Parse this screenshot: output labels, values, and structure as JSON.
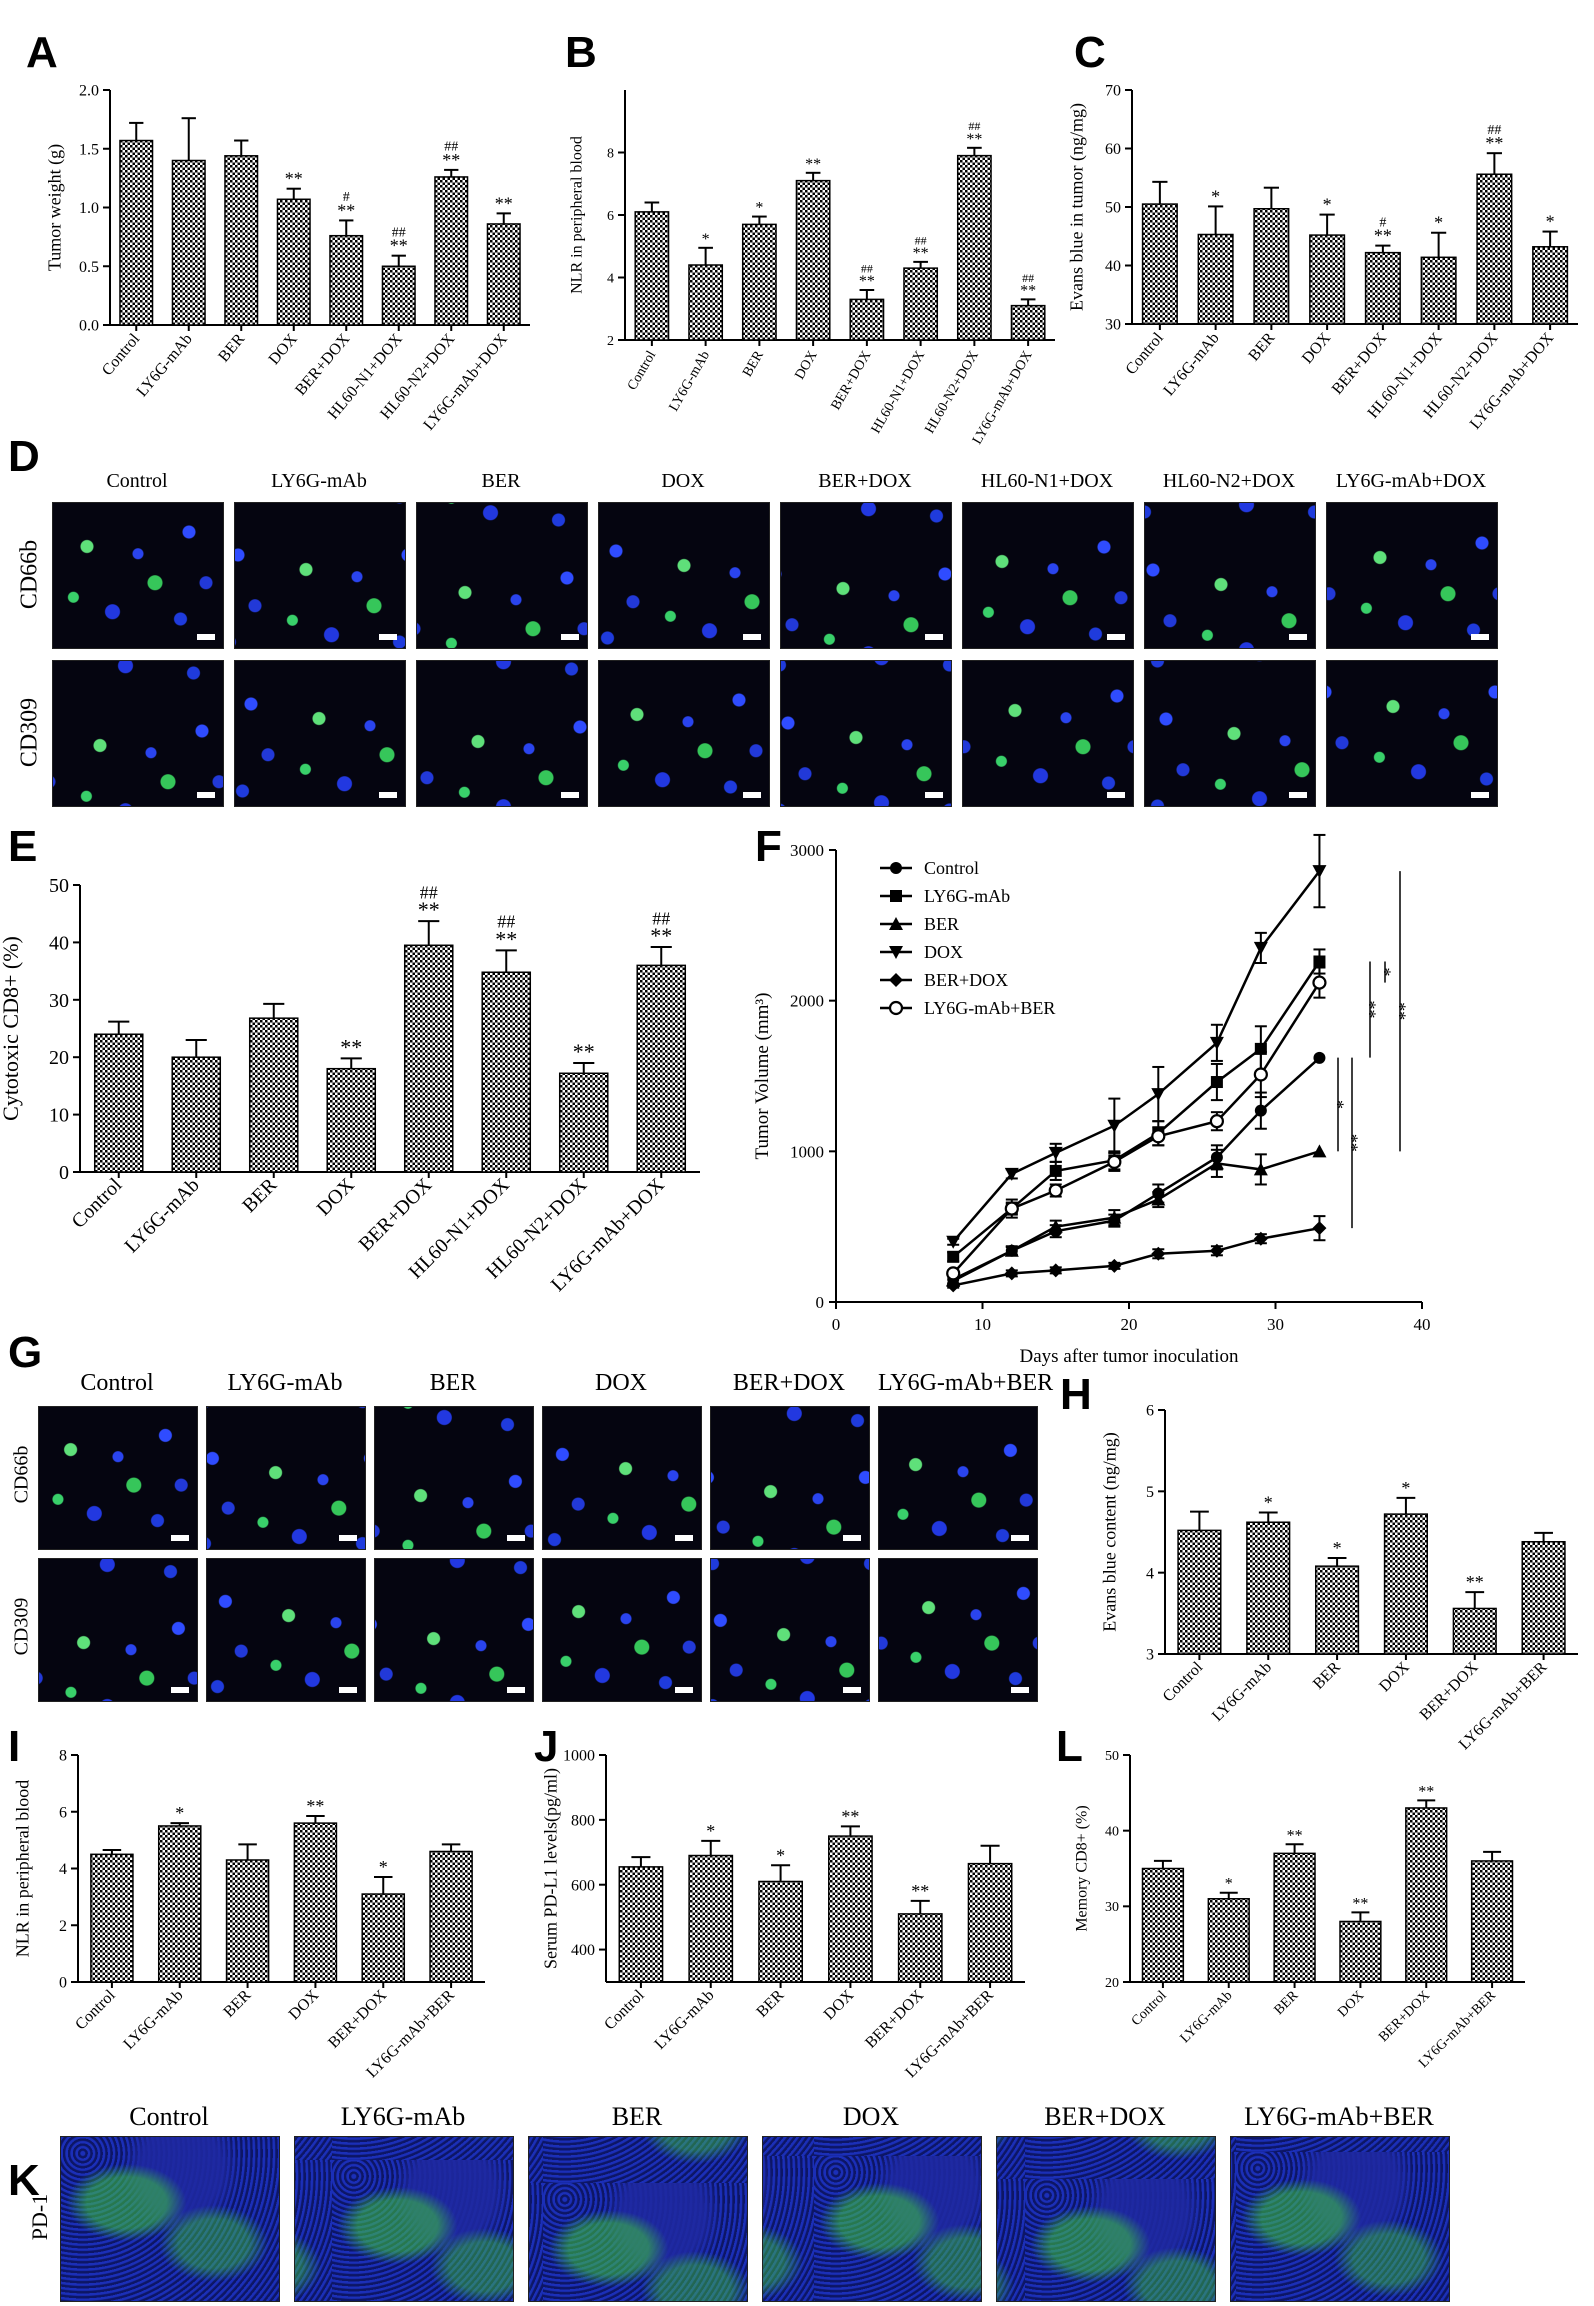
{
  "panels": {
    "A": "A",
    "B": "B",
    "C": "C",
    "D": "D",
    "E": "E",
    "F": "F",
    "G": "G",
    "H": "H",
    "I": "I",
    "J": "J",
    "K": "K",
    "L": "L"
  },
  "micro_d": {
    "cols": [
      "Control",
      "LY6G-mAb",
      "BER",
      "DOX",
      "BER+DOX",
      "HL60-N1+DOX",
      "HL60-N2+DOX",
      "LY6G-mAb+DOX"
    ],
    "rows": [
      "CD66b",
      "CD309"
    ]
  },
  "micro_g": {
    "cols": [
      "Control",
      "LY6G-mAb",
      "BER",
      "DOX",
      "BER+DOX",
      "LY6G-mAb+BER"
    ],
    "rows": [
      "CD66b",
      "CD309"
    ]
  },
  "micro_k": {
    "cols": [
      "Control",
      "LY6G-mAb",
      "BER",
      "DOX",
      "BER+DOX",
      "LY6G-mAb+BER"
    ],
    "rows": [
      "PD-1"
    ]
  },
  "chart_data": [
    {
      "id": "A",
      "type": "bar",
      "ylabel": "Tumor weight (g)",
      "ylim": [
        0,
        2.0
      ],
      "yticks": [
        "0.0",
        "0.5",
        "1.0",
        "1.5",
        "2.0"
      ],
      "categories": [
        "Control",
        "LY6G-mAb",
        "BER",
        "DOX",
        "BER+DOX",
        "HL60-N1+DOX",
        "HL60-N2+DOX",
        "LY6G-mAb+DOX"
      ],
      "values": [
        1.57,
        1.4,
        1.44,
        1.07,
        0.76,
        0.5,
        1.26,
        0.86
      ],
      "errors": [
        0.15,
        0.36,
        0.13,
        0.09,
        0.13,
        0.09,
        0.06,
        0.09
      ],
      "annotations": [
        [
          "",
          ""
        ],
        [
          "",
          ""
        ],
        [
          "",
          ""
        ],
        [
          "**",
          ""
        ],
        [
          "**",
          "#"
        ],
        [
          "**",
          "##"
        ],
        [
          "**",
          "##"
        ],
        [
          "**",
          ""
        ]
      ]
    },
    {
      "id": "B",
      "type": "bar",
      "ylabel": "NLR in peripheral blood",
      "ylim": [
        2,
        10
      ],
      "yticks": [
        "2",
        "4",
        "6",
        "8"
      ],
      "categories": [
        "Control",
        "LY6G-mAb",
        "BER",
        "DOX",
        "BER+DOX",
        "HL60-N1+DOX",
        "HL60-N2+DOX",
        "LY6G-mAb+DOX"
      ],
      "values": [
        6.1,
        4.4,
        5.7,
        7.1,
        3.3,
        4.3,
        7.9,
        3.1
      ],
      "errors": [
        0.3,
        0.55,
        0.25,
        0.25,
        0.3,
        0.2,
        0.25,
        0.2
      ],
      "annotations": [
        [
          "",
          ""
        ],
        [
          "*",
          ""
        ],
        [
          "*",
          ""
        ],
        [
          "**",
          ""
        ],
        [
          "**",
          "##"
        ],
        [
          "**",
          "##"
        ],
        [
          "**",
          "##"
        ],
        [
          "**",
          "##"
        ]
      ]
    },
    {
      "id": "C",
      "type": "bar",
      "ylabel": "Evans blue in tumor (ng/mg)",
      "ylim": [
        30,
        70
      ],
      "yticks": [
        "30",
        "40",
        "50",
        "60",
        "70"
      ],
      "categories": [
        "Control",
        "LY6G-mAb",
        "BER",
        "DOX",
        "BER+DOX",
        "HL60-N1+DOX",
        "HL60-N2+DOX",
        "LY6G-mAb+DOX"
      ],
      "values": [
        50.5,
        45.3,
        49.7,
        45.2,
        42.2,
        41.4,
        55.6,
        43.2
      ],
      "errors": [
        3.8,
        4.8,
        3.6,
        3.5,
        1.2,
        4.2,
        3.6,
        2.6
      ],
      "annotations": [
        [
          "",
          ""
        ],
        [
          "*",
          ""
        ],
        [
          "",
          ""
        ],
        [
          "*",
          ""
        ],
        [
          "**",
          "#"
        ],
        [
          "*",
          ""
        ],
        [
          "**",
          "##"
        ],
        [
          "*",
          ""
        ]
      ]
    },
    {
      "id": "E",
      "type": "bar",
      "ylabel": "Cytotoxic CD8+ (%)",
      "ylim": [
        0,
        50
      ],
      "yticks": [
        "0",
        "10",
        "20",
        "30",
        "40",
        "50"
      ],
      "categories": [
        "Control",
        "LY6G-mAb",
        "BER",
        "DOX",
        "BER+DOX",
        "HL60-N1+DOX",
        "HL60-N2+DOX",
        "LY6G-mAb+DOX"
      ],
      "values": [
        24.0,
        20.0,
        26.8,
        18.0,
        39.5,
        34.8,
        17.2,
        36.0
      ],
      "errors": [
        2.2,
        3.0,
        2.5,
        1.8,
        4.2,
        3.8,
        1.8,
        3.2
      ],
      "annotations": [
        [
          "",
          ""
        ],
        [
          "",
          ""
        ],
        [
          "",
          ""
        ],
        [
          "**",
          ""
        ],
        [
          "**",
          "##"
        ],
        [
          "**",
          "##"
        ],
        [
          "**",
          ""
        ],
        [
          "**",
          "##"
        ]
      ]
    },
    {
      "id": "F",
      "type": "line",
      "xlabel": "Days after tumor inoculation",
      "ylabel": "Tumor Volume (mm³)",
      "xlim": [
        0,
        40
      ],
      "ylim": [
        0,
        3000
      ],
      "xticks": [
        "0",
        "10",
        "20",
        "30",
        "40"
      ],
      "yticks": [
        "0",
        "1000",
        "2000",
        "3000"
      ],
      "x": [
        8,
        12,
        15,
        19,
        22,
        26,
        29,
        33
      ],
      "series": [
        {
          "name": "Control",
          "marker": "circle",
          "values": [
            150,
            340,
            470,
            540,
            720,
            960,
            1270,
            1620
          ],
          "errors": [
            30,
            25,
            40,
            40,
            60,
            80,
            120,
            0
          ]
        },
        {
          "name": "LY6G-mAb",
          "marker": "square",
          "values": [
            300,
            620,
            870,
            940,
            1120,
            1460,
            1680,
            2260
          ],
          "errors": [
            30,
            60,
            60,
            60,
            80,
            120,
            150,
            80
          ]
        },
        {
          "name": "BER",
          "marker": "triangle-up",
          "values": [
            140,
            340,
            500,
            560,
            680,
            920,
            880,
            1000
          ],
          "errors": [
            30,
            30,
            40,
            50,
            50,
            90,
            100,
            0
          ]
        },
        {
          "name": "DOX",
          "marker": "triangle-down",
          "values": [
            400,
            850,
            990,
            1170,
            1380,
            1720,
            2350,
            2860
          ],
          "errors": [
            20,
            30,
            60,
            180,
            180,
            120,
            100,
            240
          ]
        },
        {
          "name": "BER+DOX",
          "marker": "diamond",
          "values": [
            110,
            190,
            210,
            240,
            320,
            340,
            420,
            490
          ],
          "errors": [
            15,
            20,
            20,
            20,
            30,
            30,
            30,
            80
          ]
        },
        {
          "name": "LY6G-mAb+BER",
          "marker": "open-circle",
          "values": [
            190,
            620,
            740,
            930,
            1100,
            1200,
            1510,
            2120
          ],
          "errors": [
            20,
            40,
            40,
            60,
            60,
            60,
            150,
            100
          ]
        }
      ],
      "sig": [
        "*",
        "**",
        "**",
        "*",
        "**"
      ]
    },
    {
      "id": "H",
      "type": "bar",
      "ylabel": "Evans blue content (ng/mg)",
      "ylim": [
        3,
        6
      ],
      "yticks": [
        "3",
        "4",
        "5",
        "6"
      ],
      "categories": [
        "Control",
        "LY6G-mAb",
        "BER",
        "DOX",
        "BER+DOX",
        "LY6G-mAb+BER"
      ],
      "values": [
        4.52,
        4.62,
        4.08,
        4.72,
        3.56,
        4.38
      ],
      "errors": [
        0.23,
        0.12,
        0.1,
        0.2,
        0.2,
        0.11
      ],
      "annotations": [
        [
          "",
          ""
        ],
        [
          "*",
          ""
        ],
        [
          "*",
          ""
        ],
        [
          "*",
          ""
        ],
        [
          "**",
          ""
        ],
        [
          "",
          ""
        ]
      ]
    },
    {
      "id": "I",
      "type": "bar",
      "ylabel": "NLR in peripheral blood",
      "ylim": [
        0,
        8
      ],
      "yticks": [
        "0",
        "2",
        "4",
        "6",
        "8"
      ],
      "categories": [
        "Control",
        "LY6G-mAb",
        "BER",
        "DOX",
        "BER+DOX",
        "LY6G-mAb+BER"
      ],
      "values": [
        4.5,
        5.5,
        4.3,
        5.6,
        3.1,
        4.6
      ],
      "errors": [
        0.15,
        0.1,
        0.55,
        0.25,
        0.6,
        0.25
      ],
      "annotations": [
        [
          "",
          ""
        ],
        [
          "*",
          ""
        ],
        [
          "",
          ""
        ],
        [
          "**",
          ""
        ],
        [
          "*",
          ""
        ],
        [
          "",
          ""
        ]
      ]
    },
    {
      "id": "J",
      "type": "bar",
      "ylabel": "Serum PD-L1 levels(pg/ml)",
      "ylim": [
        300,
        1000
      ],
      "yticks": [
        "400",
        "600",
        "800",
        "1000"
      ],
      "categories": [
        "Control",
        "LY6G-mAb",
        "BER",
        "DOX",
        "BER+DOX",
        "LY6G-mAb+BER"
      ],
      "values": [
        655,
        690,
        610,
        750,
        510,
        665
      ],
      "errors": [
        30,
        45,
        50,
        30,
        40,
        55
      ],
      "annotations": [
        [
          "",
          ""
        ],
        [
          "*",
          ""
        ],
        [
          "*",
          ""
        ],
        [
          "**",
          ""
        ],
        [
          "**",
          ""
        ],
        [
          "",
          ""
        ]
      ]
    },
    {
      "id": "L",
      "type": "bar",
      "ylabel": "Memory CD8+ (%)",
      "ylim": [
        20,
        50
      ],
      "yticks": [
        "20",
        "30",
        "40",
        "50"
      ],
      "categories": [
        "Control",
        "LY6G-mAb",
        "BER",
        "DOX",
        "BER+DOX",
        "LY6G-mAb+BER"
      ],
      "values": [
        35,
        31,
        37,
        28,
        43,
        36
      ],
      "errors": [
        1.0,
        0.8,
        1.2,
        1.2,
        1.0,
        1.2
      ],
      "annotations": [
        [
          "",
          ""
        ],
        [
          "*",
          ""
        ],
        [
          "**",
          ""
        ],
        [
          "**",
          ""
        ],
        [
          "**",
          ""
        ],
        [
          "",
          ""
        ]
      ]
    }
  ]
}
